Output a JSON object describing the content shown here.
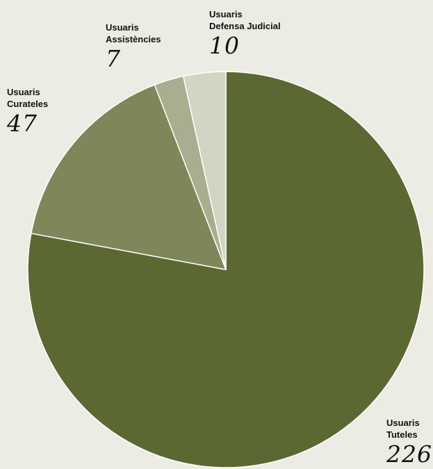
{
  "chart_data": {
    "type": "pie",
    "start": "top",
    "direction": "clockwise",
    "slices": [
      {
        "label_line1": "Usuaris",
        "label_line2": "Tuteles",
        "value": 226,
        "value_text": "226",
        "color": "#5c6832"
      },
      {
        "label_line1": "Usuaris",
        "label_line2": "Curateles",
        "value": 47,
        "value_text": "47",
        "color": "#7f865a"
      },
      {
        "label_line1": "Usuaris",
        "label_line2": "Assistències",
        "value": 7,
        "value_text": "7",
        "color": "#a8ae8f"
      },
      {
        "label_line1": "Usuaris",
        "label_line2": "Defensa Judicial",
        "value": 10,
        "value_text": "10",
        "color": "#d2d5c3"
      }
    ],
    "background": "#ecece4",
    "separator_color": "#ffffff"
  }
}
